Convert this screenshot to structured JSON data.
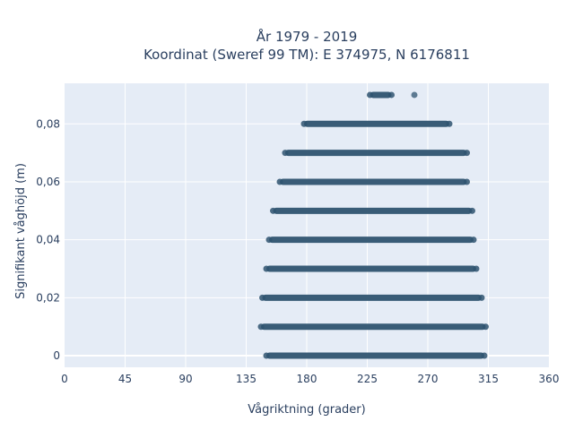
{
  "chart_data": {
    "type": "scatter",
    "title_line1": "År 1979 - 2019",
    "title_line2": "Koordinat (Sweref 99 TM): E 374975, N 6176811",
    "xlabel": "Vågriktning (grader)",
    "ylabel": "Signifikant våghöjd (m)",
    "xlim": [
      0,
      360
    ],
    "ylim": [
      -0.004,
      0.094
    ],
    "xticks": [
      0,
      45,
      90,
      135,
      180,
      225,
      270,
      315,
      360
    ],
    "yticks": [
      0,
      0.02,
      0.04,
      0.06,
      0.08
    ],
    "x_tick_labels": [
      "0",
      "45",
      "90",
      "135",
      "180",
      "225",
      "270",
      "315",
      "360"
    ],
    "y_tick_labels": [
      "0",
      "0,02",
      "0,04",
      "0,06",
      "0,08"
    ],
    "grid": true,
    "marker_color": "#2f5470",
    "plot_bg": "#e5ecf6",
    "series": [
      {
        "bands": [
          {
            "y": 0.0,
            "x_min": 150,
            "x_max": 312
          },
          {
            "y": 0.01,
            "x_min": 146,
            "x_max": 313
          },
          {
            "y": 0.02,
            "x_min": 147,
            "x_max": 310
          },
          {
            "y": 0.03,
            "x_min": 150,
            "x_max": 306
          },
          {
            "y": 0.04,
            "x_min": 152,
            "x_max": 304
          },
          {
            "y": 0.05,
            "x_min": 155,
            "x_max": 303
          },
          {
            "y": 0.06,
            "x_min": 160,
            "x_max": 299
          },
          {
            "y": 0.07,
            "x_min": 164,
            "x_max": 299
          },
          {
            "y": 0.08,
            "x_min": 178,
            "x_max": 286
          },
          {
            "y": 0.09,
            "x_min": 227,
            "x_max": 243
          }
        ],
        "outliers": [
          {
            "x": 260,
            "y": 0.09
          }
        ]
      }
    ]
  }
}
